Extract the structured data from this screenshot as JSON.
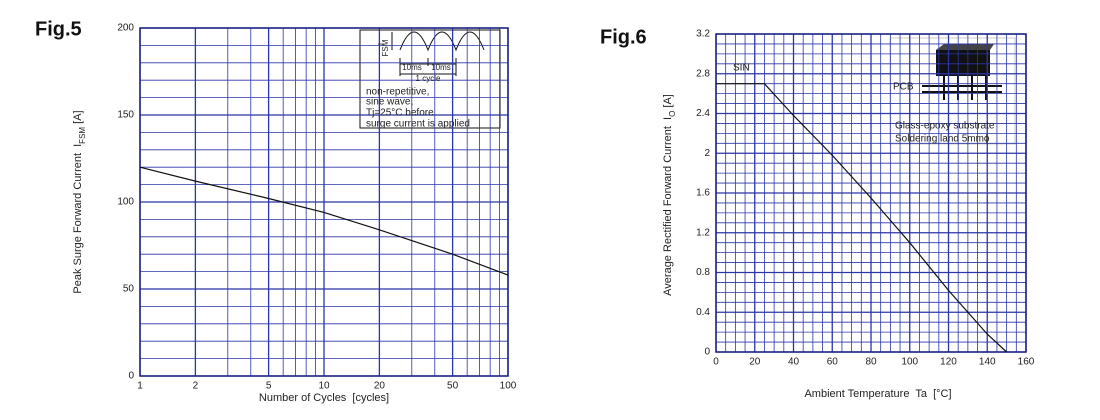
{
  "chart_data": [
    {
      "type": "line",
      "title": "Fig.5",
      "xlabel": "Number of Cycles  [cycles]",
      "ylabel": [
        "Peak Surge Forward Current  I",
        "FSM",
        " [A]"
      ],
      "xlog": true,
      "xlim": [
        1,
        100
      ],
      "ylim": [
        0,
        200
      ],
      "xticks": [
        1,
        2,
        5,
        10,
        20,
        50,
        100
      ],
      "yticks": [
        0,
        50,
        100,
        150,
        200
      ],
      "grid": true,
      "minor_divisions": {
        "y": 5
      },
      "series": [
        {
          "color": "#111111",
          "x": [
            1,
            2,
            5,
            10,
            20,
            50,
            100
          ],
          "values": [
            120,
            112,
            102,
            94,
            84,
            70,
            58
          ]
        }
      ],
      "annotations": [
        "I",
        "FSM",
        "10ms",
        "10ms",
        "1 cycle",
        "non-repetitive,",
        "sine wave,",
        "Tj=25°C before",
        "surge current is applied"
      ]
    },
    {
      "type": "line",
      "title": "Fig.6",
      "xlabel": "Ambient Temperature  Ta  [°C]",
      "ylabel": [
        "Average Rectified Forward Current  I",
        "O",
        " [A]"
      ],
      "xlog": false,
      "xlim": [
        0,
        160
      ],
      "ylim": [
        0,
        3.2
      ],
      "xticks": [
        0,
        20,
        40,
        60,
        80,
        100,
        120,
        140,
        160
      ],
      "yticks": [
        0,
        0.4,
        0.8,
        1.2,
        1.6,
        2,
        2.4,
        2.8,
        3.2
      ],
      "grid": true,
      "minor_divisions": {
        "x": 4,
        "y": 4
      },
      "series": [
        {
          "color": "#111111",
          "x": [
            0,
            25,
            40,
            60,
            80,
            100,
            120,
            140,
            150
          ],
          "values": [
            2.7,
            2.7,
            2.38,
            1.98,
            1.55,
            1.1,
            0.62,
            0.18,
            0
          ]
        }
      ],
      "annotations": [
        "SIN",
        "PCB",
        "Glass-epoxy substrate",
        "Soldering land 5mmϕ"
      ]
    }
  ]
}
